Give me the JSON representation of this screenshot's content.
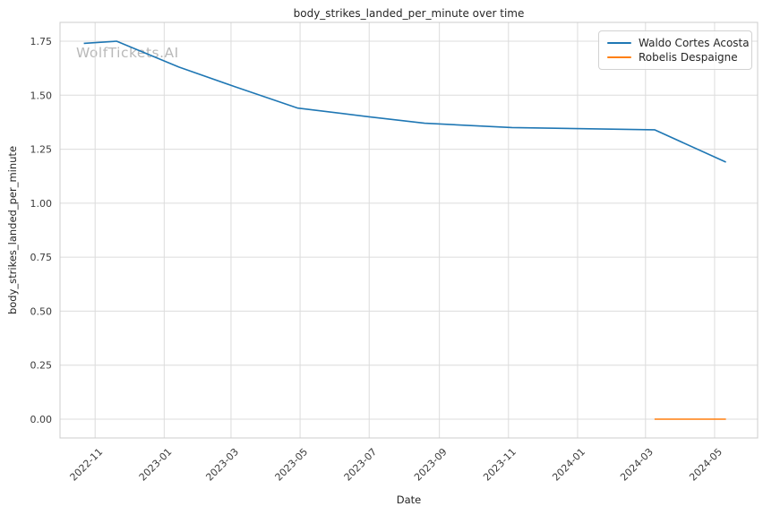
{
  "watermark": "WolfTickets.AI",
  "chart_data": {
    "type": "line",
    "title": "body_strikes_landed_per_minute over time",
    "xlabel": "Date",
    "ylabel": "body_strikes_landed_per_minute",
    "grid": true,
    "legend_position": "upper right",
    "xlim": [
      "2022-10-01",
      "2024-06-08"
    ],
    "ylim": [
      -0.087,
      1.837
    ],
    "x_ticks": [
      {
        "label": "2022-11",
        "date": "2022-11-01"
      },
      {
        "label": "2023-01",
        "date": "2023-01-01"
      },
      {
        "label": "2023-03",
        "date": "2023-03-01"
      },
      {
        "label": "2023-05",
        "date": "2023-05-01"
      },
      {
        "label": "2023-07",
        "date": "2023-07-01"
      },
      {
        "label": "2023-09",
        "date": "2023-09-01"
      },
      {
        "label": "2023-11",
        "date": "2023-11-01"
      },
      {
        "label": "2024-01",
        "date": "2024-01-01"
      },
      {
        "label": "2024-03",
        "date": "2024-03-01"
      },
      {
        "label": "2024-05",
        "date": "2024-05-01"
      }
    ],
    "y_ticks": [
      {
        "label": "0.00",
        "value": 0.0
      },
      {
        "label": "0.25",
        "value": 0.25
      },
      {
        "label": "0.50",
        "value": 0.5
      },
      {
        "label": "0.75",
        "value": 0.75
      },
      {
        "label": "1.00",
        "value": 1.0
      },
      {
        "label": "1.25",
        "value": 1.25
      },
      {
        "label": "1.50",
        "value": 1.5
      },
      {
        "label": "1.75",
        "value": 1.75
      }
    ],
    "series": [
      {
        "name": "Waldo Cortes Acosta",
        "color": "#1f77b4",
        "points": [
          [
            "2022-10-22",
            1.74
          ],
          [
            "2022-11-20",
            1.75
          ],
          [
            "2023-01-14",
            1.63
          ],
          [
            "2023-03-04",
            1.54
          ],
          [
            "2023-04-29",
            1.44
          ],
          [
            "2023-07-01",
            1.4
          ],
          [
            "2023-08-19",
            1.37
          ],
          [
            "2023-11-04",
            1.35
          ],
          [
            "2024-03-09",
            1.34
          ],
          [
            "2024-05-11",
            1.19
          ]
        ]
      },
      {
        "name": "Robelis Despaigne",
        "color": "#ff7f0e",
        "points": [
          [
            "2024-03-09",
            0.0
          ],
          [
            "2024-05-11",
            0.0
          ]
        ]
      }
    ],
    "style": {
      "grid_color": "#dcdcdc",
      "spine_color": "#cccccc",
      "line_width": 1.6
    }
  }
}
